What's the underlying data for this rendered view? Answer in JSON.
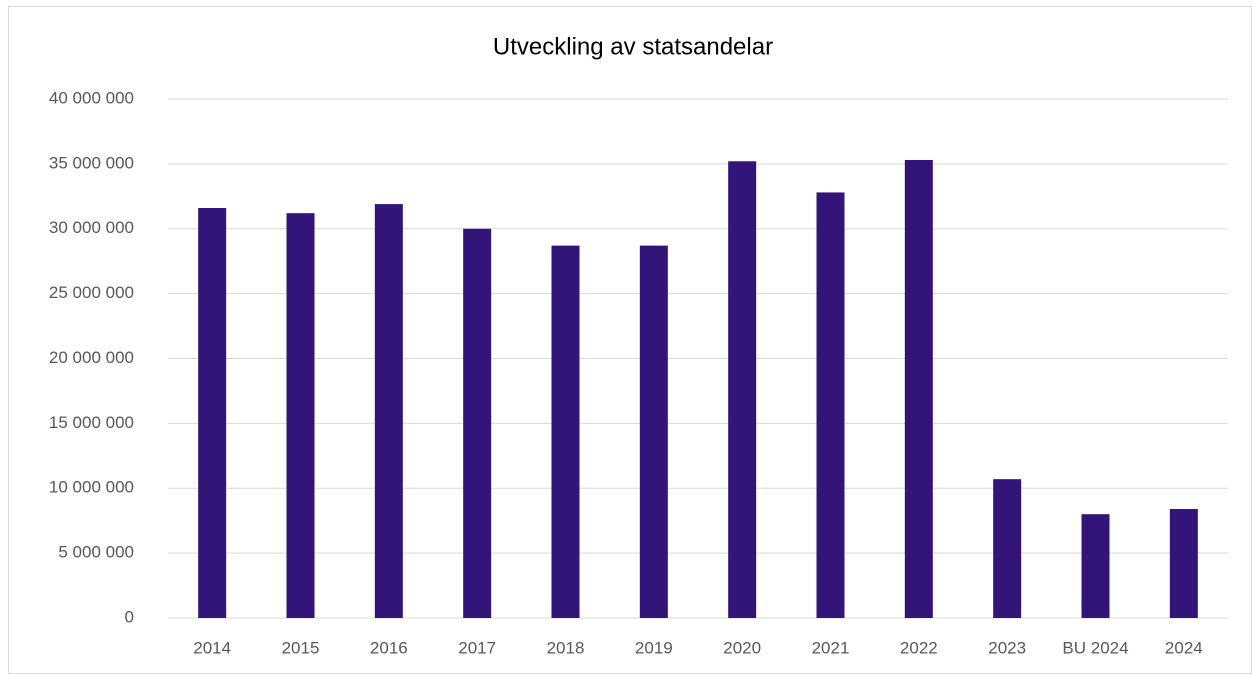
{
  "chart_data": {
    "type": "bar",
    "title": "Utveckling av statsandelar",
    "categories": [
      "2014",
      "2015",
      "2016",
      "2017",
      "2018",
      "2019",
      "2020",
      "2021",
      "2022",
      "2023",
      "BU 2024",
      "2024"
    ],
    "values": [
      31600000,
      31200000,
      31900000,
      30000000,
      28700000,
      28700000,
      35200000,
      32800000,
      35300000,
      10700000,
      8000000,
      8400000
    ],
    "color": "#33157a",
    "ylim": [
      0,
      40000000
    ],
    "yticks": [
      {
        "value": 0,
        "label": "0"
      },
      {
        "value": 5000000,
        "label": "5 000 000"
      },
      {
        "value": 10000000,
        "label": "10 000 000"
      },
      {
        "value": 15000000,
        "label": "15 000 000"
      },
      {
        "value": 20000000,
        "label": "20 000 000"
      },
      {
        "value": 25000000,
        "label": "25 000 000"
      },
      {
        "value": 30000000,
        "label": "30 000 000"
      },
      {
        "value": 35000000,
        "label": "35 000 000"
      },
      {
        "value": 40000000,
        "label": "40 000 000"
      }
    ],
    "grid": true
  }
}
